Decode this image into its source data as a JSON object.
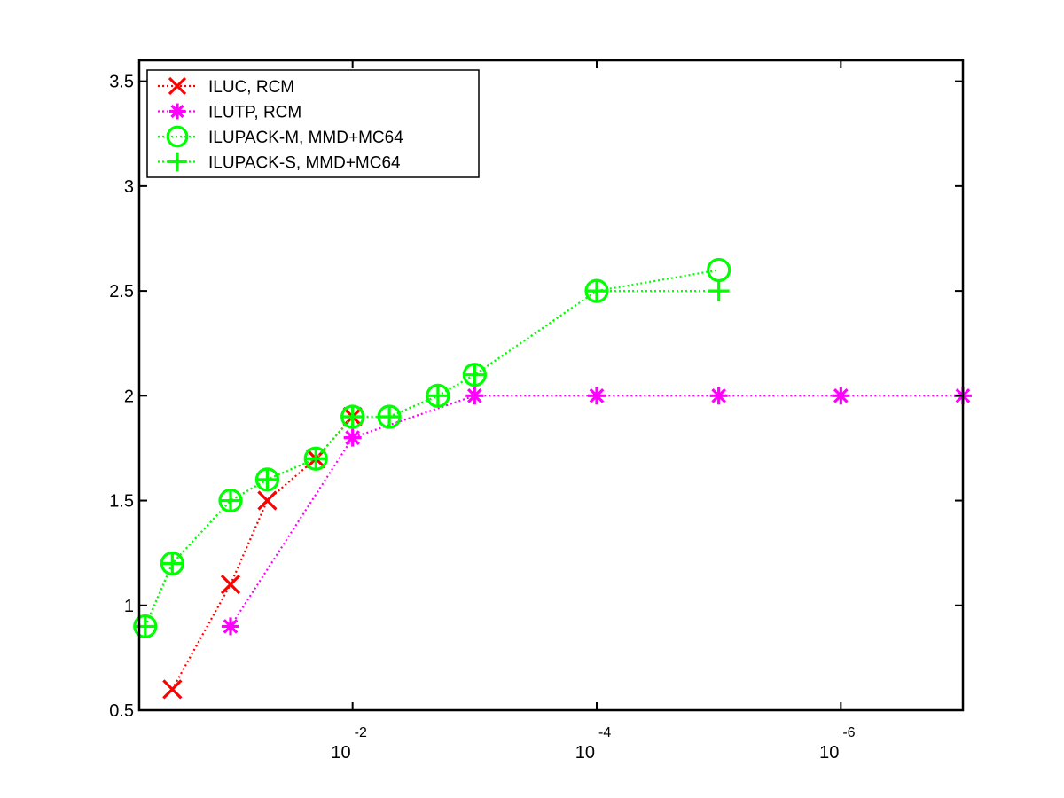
{
  "chart_data": {
    "type": "line",
    "xscale": "log",
    "xdirection": "decreasing",
    "xlim": [
      0.56,
      1e-07
    ],
    "ylim": [
      0.5,
      3.6
    ],
    "yticks": [
      0.5,
      1,
      1.5,
      2,
      2.5,
      3,
      3.5
    ],
    "ytick_labels": [
      "0.5",
      "1",
      "1.5",
      "2",
      "2.5",
      "3",
      "3.5"
    ],
    "xticks": [
      0.01,
      0.0001,
      1e-06
    ],
    "xtick_labels": [
      {
        "base": "10",
        "exponent": "-2"
      },
      {
        "base": "10",
        "exponent": "-4"
      },
      {
        "base": "10",
        "exponent": "-6"
      }
    ],
    "grid": false,
    "legend_position": "top-left",
    "series": [
      {
        "name": "ILUC, RCM",
        "color": "#ff0000",
        "marker": "x",
        "linestyle": "dotted",
        "x": [
          0.3,
          0.1,
          0.05,
          0.02,
          0.01
        ],
        "y": [
          0.6,
          1.1,
          1.5,
          1.7,
          1.9
        ]
      },
      {
        "name": "ILUTP, RCM",
        "color": "#ff00ff",
        "marker": "asterisk",
        "linestyle": "dotted",
        "x": [
          0.1,
          0.01,
          0.001,
          0.0001,
          1e-05,
          1e-06,
          1e-07
        ],
        "y": [
          0.9,
          1.8,
          2.0,
          2.0,
          2.0,
          2.0,
          2.0
        ]
      },
      {
        "name": "ILUPACK-M, MMD+MC64",
        "color": "#00ff00",
        "marker": "circle",
        "linestyle": "dotted",
        "x": [
          0.5,
          0.3,
          0.1,
          0.05,
          0.02,
          0.01,
          0.005,
          0.002,
          0.001,
          0.0001,
          1e-05
        ],
        "y": [
          0.9,
          1.2,
          1.5,
          1.6,
          1.7,
          1.9,
          1.9,
          2.0,
          2.1,
          2.5,
          2.6
        ]
      },
      {
        "name": "ILUPACK-S, MMD+MC64",
        "color": "#00ff00",
        "marker": "plus",
        "linestyle": "dotted",
        "x": [
          0.5,
          0.3,
          0.1,
          0.05,
          0.02,
          0.01,
          0.005,
          0.002,
          0.001,
          0.0001,
          1e-05
        ],
        "y": [
          0.9,
          1.2,
          1.5,
          1.6,
          1.7,
          1.9,
          1.9,
          2.0,
          2.1,
          2.5,
          2.5
        ]
      }
    ]
  }
}
